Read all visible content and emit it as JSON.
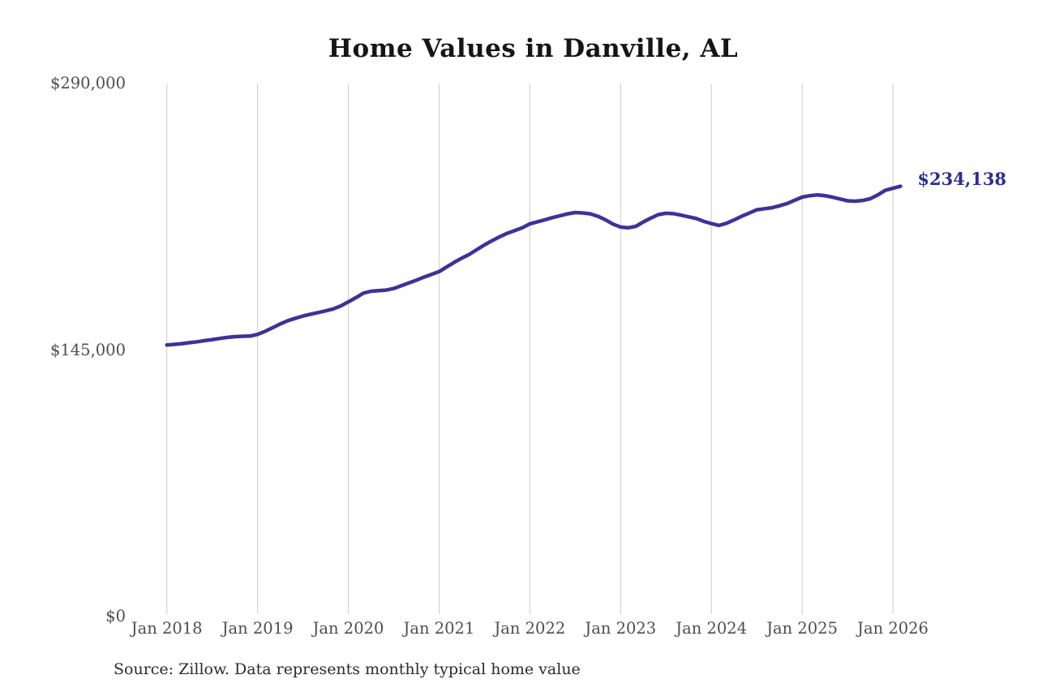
{
  "chart_data": {
    "type": "line",
    "title": "Home Values in Danville, AL",
    "source_note": "Source: Zillow. Data represents monthly typical home value",
    "latest_value": 234138,
    "latest_value_label": "$234,138",
    "line_color": "#3a339a",
    "end_label_color": "#2d2d94",
    "grid_color": "#cbcbcb",
    "axis_label_color": "#4e4e4e",
    "x_tick_labels": [
      "Jan 2018",
      "Jan 2019",
      "Jan 2020",
      "Jan 2021",
      "Jan 2022",
      "Jan 2023",
      "Jan 2024",
      "Jan 2025",
      "Jan 2026"
    ],
    "y_tick_labels": [
      "$290,000",
      "$145,000",
      "$0"
    ],
    "y_ticks": [
      290000,
      145000,
      0
    ],
    "ylim": [
      0,
      290000
    ],
    "x_start_month": "2018-01",
    "x_end_month": "2026-02",
    "grid": "vertical-only",
    "legend": "none",
    "series": [
      {
        "name": "Monthly typical home value",
        "monthly_values": [
          147800,
          148100,
          148500,
          149000,
          149500,
          150100,
          150700,
          151300,
          151900,
          152300,
          152500,
          152600,
          153500,
          155200,
          157200,
          159200,
          161000,
          162300,
          163500,
          164500,
          165400,
          166300,
          167400,
          169000,
          171200,
          173500,
          176000,
          177000,
          177300,
          177600,
          178500,
          180000,
          181500,
          183000,
          184700,
          186200,
          187700,
          190200,
          192700,
          195000,
          197100,
          199700,
          202200,
          204500,
          206600,
          208500,
          210000,
          211500,
          213700,
          214800,
          215900,
          217100,
          218100,
          219100,
          219800,
          219600,
          219100,
          217800,
          215900,
          213500,
          211900,
          211500,
          212300,
          214700,
          216800,
          218700,
          219400,
          219200,
          218400,
          217500,
          216600,
          215000,
          213800,
          212800,
          214000,
          215800,
          217800,
          219500,
          221300,
          221900,
          222400,
          223500,
          224700,
          226500,
          228200,
          229000,
          229400,
          229000,
          228200,
          227200,
          226200,
          226000,
          226400,
          227300,
          229400,
          231900,
          233000,
          234138
        ]
      }
    ]
  }
}
